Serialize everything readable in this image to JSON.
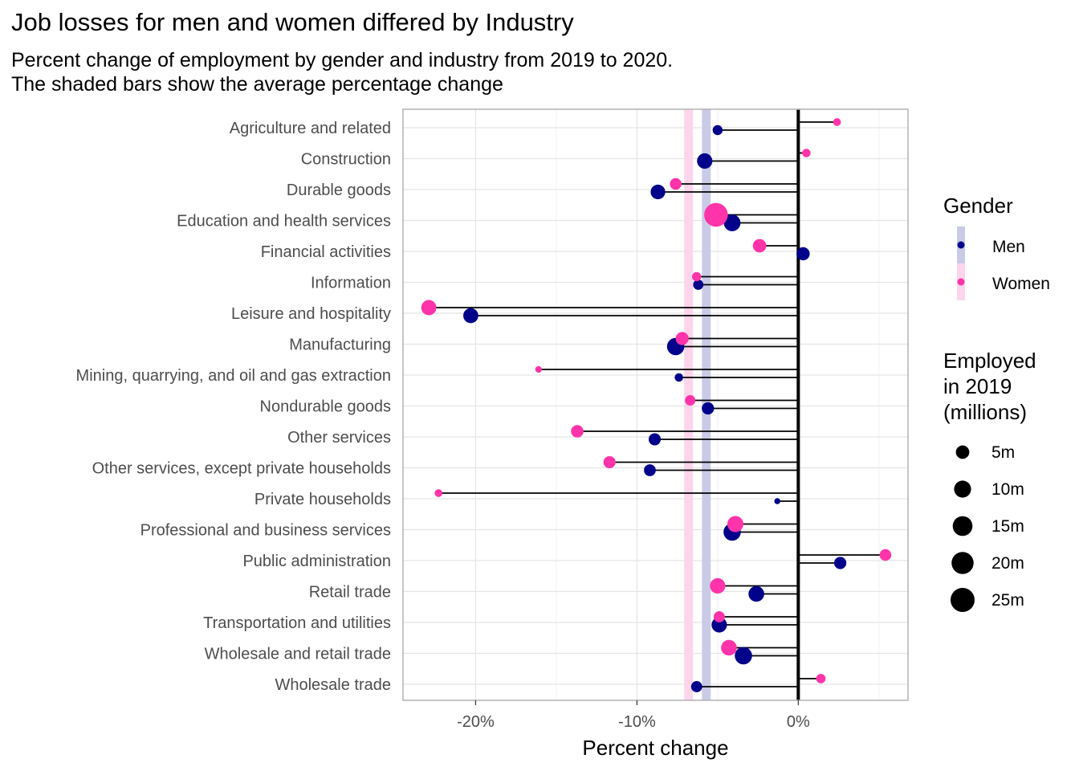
{
  "title": "Job losses for men and women differed by Industry",
  "subtitle": [
    "Percent change of employment by gender and industry from 2019 to 2020.",
    "The shaded bars show the average percentage change"
  ],
  "colors": {
    "men": "#00008B",
    "women": "#FF33AA",
    "men_band": "#C9CBE6",
    "women_band": "#FCD5EC",
    "grid": "#E5E5E5",
    "panel_border": "#B3B3B3",
    "zero_line": "#000000"
  },
  "legend": {
    "gender_title": "Gender",
    "gender_items": [
      {
        "label": "Men",
        "color": "#00008B"
      },
      {
        "label": "Women",
        "color": "#FF33AA"
      }
    ],
    "size_title": [
      "Employed",
      "in 2019",
      "(millions)"
    ],
    "size_items": [
      {
        "label": "5m",
        "value": 5
      },
      {
        "label": "10m",
        "value": 10
      },
      {
        "label": "15m",
        "value": 15
      },
      {
        "label": "20m",
        "value": 20
      },
      {
        "label": "25m",
        "value": 25
      }
    ]
  },
  "chart_data": {
    "type": "scatter",
    "xlabel": "Percent change",
    "ylabel": "",
    "xlim": [
      -24.5,
      6.8
    ],
    "x_ticks": [
      -20,
      -10,
      0
    ],
    "x_tick_labels": [
      "-20%",
      "-10%",
      "0%"
    ],
    "grid": true,
    "legend_position": "right",
    "average_bands": {
      "men": -5.7,
      "women": -6.8
    },
    "categories": [
      "Agriculture and related",
      "Construction",
      "Durable goods",
      "Education and health services",
      "Financial activities",
      "Information",
      "Leisure and hospitality",
      "Manufacturing",
      "Mining, quarrying, and oil and gas extraction",
      "Nondurable goods",
      "Other services",
      "Other services, except private households",
      "Private households",
      "Professional and business services",
      "Public administration",
      "Retail trade",
      "Transportation and utilities",
      "Wholesale and retail trade",
      "Wholesale trade"
    ],
    "series": [
      {
        "name": "Men",
        "values": [
          -5.0,
          -5.8,
          -8.7,
          -4.1,
          0.3,
          -6.2,
          -20.3,
          -7.6,
          -7.4,
          -5.6,
          -8.9,
          -9.2,
          -1.3,
          -4.1,
          2.6,
          -2.6,
          -4.9,
          -3.4,
          -6.3
        ],
        "employed_millions": [
          1.8,
          7.5,
          6.5,
          9.5,
          4.7,
          2.0,
          7.0,
          10.5,
          0.9,
          3.7,
          3.6,
          3.3,
          0.1,
          10.5,
          3.7,
          8.0,
          7.5,
          10.5,
          2.7
        ]
      },
      {
        "name": "Women",
        "values": [
          2.4,
          0.5,
          -7.6,
          -5.1,
          -2.4,
          -6.3,
          -22.9,
          -7.2,
          -16.1,
          -6.7,
          -13.7,
          -11.7,
          -22.3,
          -3.9,
          5.4,
          -5.0,
          -4.9,
          -4.3,
          1.4
        ],
        "employed_millions": [
          0.6,
          0.9,
          3.1,
          24.0,
          5.0,
          1.3,
          7.2,
          4.6,
          0.2,
          2.1,
          4.0,
          3.6,
          0.6,
          8.5,
          3.2,
          7.6,
          2.7,
          8.0,
          1.4
        ]
      }
    ]
  }
}
